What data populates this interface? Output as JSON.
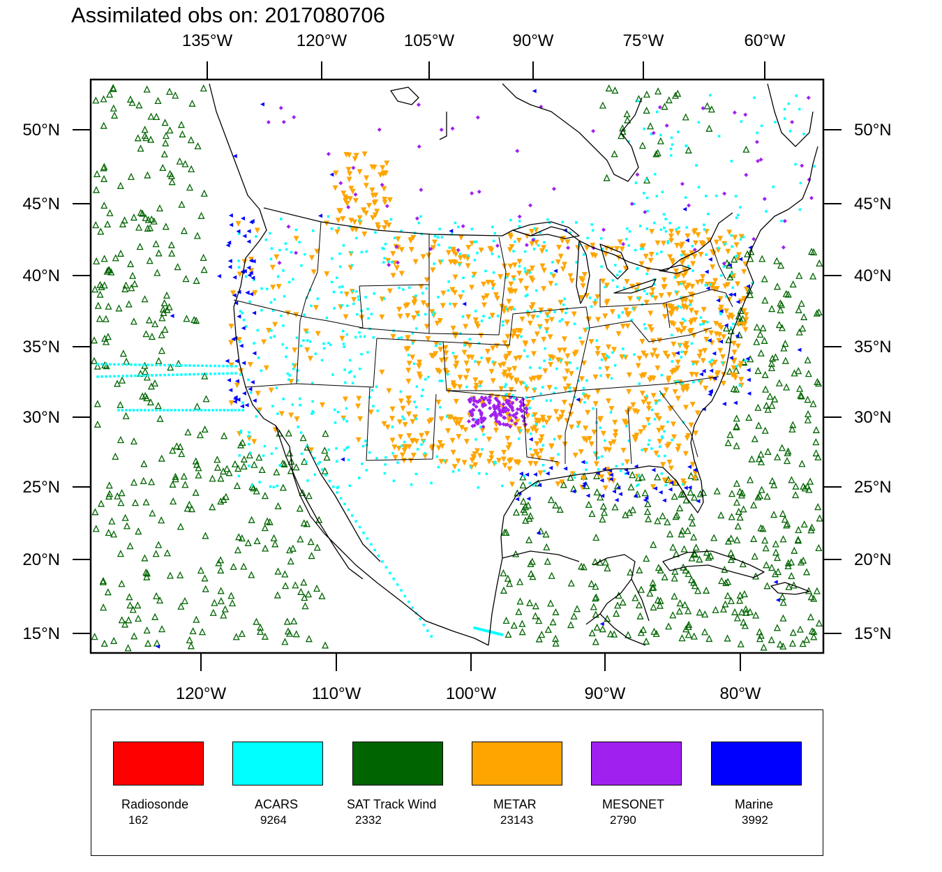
{
  "title": "Assimilated obs on: 2017080706",
  "axes": {
    "top_lon_labels": [
      "135°W",
      "120°W",
      "105°W",
      "90°W",
      "75°W",
      "60°W"
    ],
    "bottom_lon_labels": [
      "120°W",
      "110°W",
      "100°W",
      "90°W",
      "80°W"
    ],
    "lat_labels": [
      "50°N",
      "45°N",
      "40°N",
      "35°N",
      "30°N",
      "25°N",
      "20°N",
      "15°N"
    ]
  },
  "legend": [
    {
      "name": "Radiosonde",
      "count": "162",
      "color": "#ff0000"
    },
    {
      "name": "ACARS",
      "count": "9264",
      "color": "#00ffff"
    },
    {
      "name": "SAT Track Wind",
      "count": "2332",
      "color": "#006400"
    },
    {
      "name": "METAR",
      "count": "23143",
      "color": "#ffa500"
    },
    {
      "name": "MESONET",
      "count": "2790",
      "color": "#a020f0"
    },
    {
      "name": "Marine",
      "count": "3992",
      "color": "#0000ff"
    }
  ],
  "colors": {
    "coastline": "#000000",
    "acars": "#00ffff",
    "sat_wind": "#006400",
    "metar": "#ffa500",
    "mesonet": "#a020f0",
    "marine": "#0000ff"
  }
}
